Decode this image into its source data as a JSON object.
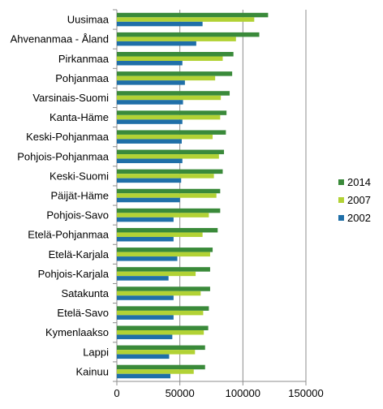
{
  "chart_data": {
    "type": "bar",
    "orientation": "horizontal",
    "title": "",
    "xlabel": "",
    "ylabel": "",
    "categories": [
      "Uusimaa",
      "Ahvenanmaa - Åland",
      "Pirkanmaa",
      "Pohjanmaa",
      "Varsinais-Suomi",
      "Kanta-Häme",
      "Keski-Pohjanmaa",
      "Pohjois-Pohjanmaa",
      "Keski-Suomi",
      "Päijät-Häme",
      "Pohjois-Savo",
      "Etelä-Pohjanmaa",
      "Etelä-Karjala",
      "Pohjois-Karjala",
      "Satakunta",
      "Etelä-Savo",
      "Kymenlaakso",
      "Lappi",
      "Kainuu"
    ],
    "series": [
      {
        "name": "2014",
        "color": "#3a8a3a",
        "values": [
          120000,
          113000,
          92500,
          91500,
          89500,
          87000,
          86500,
          85000,
          84000,
          82000,
          82000,
          80000,
          76000,
          74000,
          74000,
          73000,
          72500,
          70000,
          70000
        ]
      },
      {
        "name": "2007",
        "color": "#b2d235",
        "values": [
          109000,
          94500,
          84000,
          78000,
          82500,
          82000,
          76000,
          81000,
          77000,
          79000,
          73000,
          68000,
          74000,
          62500,
          66500,
          68500,
          69000,
          62000,
          61000
        ]
      },
      {
        "name": "2002",
        "color": "#1f6fa8",
        "values": [
          68000,
          63000,
          52000,
          54000,
          52500,
          52000,
          51500,
          52000,
          51000,
          50000,
          45000,
          45000,
          48000,
          41000,
          45000,
          45000,
          44000,
          41500,
          42500
        ]
      }
    ],
    "xlim": [
      0,
      150000
    ],
    "xticks": [
      0,
      50000,
      100000,
      150000
    ],
    "xtick_labels": [
      "0",
      "50000",
      "100000",
      "150000"
    ],
    "grid": true,
    "legend_position": "right"
  }
}
